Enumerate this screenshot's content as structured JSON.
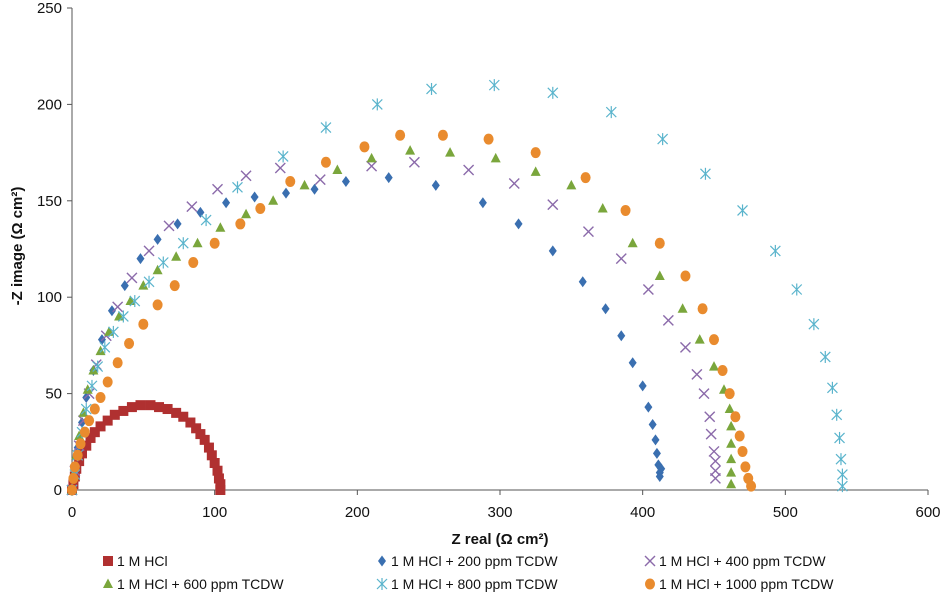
{
  "chart_data": {
    "type": "scatter",
    "xlabel": "Z real (Ω cm²)",
    "ylabel": "-Z image (Ω cm²)",
    "xlim": [
      0,
      600
    ],
    "ylim": [
      0,
      250
    ],
    "xticks": [
      0,
      100,
      200,
      300,
      400,
      500,
      600
    ],
    "yticks": [
      0,
      50,
      100,
      150,
      200,
      250
    ],
    "grid": false,
    "legend_position": "bottom",
    "series": [
      {
        "name": "1 M HCl",
        "marker": "square",
        "color": "#b03030",
        "points": [
          [
            0,
            0
          ],
          [
            1,
            3
          ],
          [
            2,
            7
          ],
          [
            3,
            11
          ],
          [
            5,
            15
          ],
          [
            7,
            19
          ],
          [
            10,
            23
          ],
          [
            13,
            27
          ],
          [
            16,
            30
          ],
          [
            20,
            33
          ],
          [
            25,
            36
          ],
          [
            30,
            39
          ],
          [
            36,
            41
          ],
          [
            42,
            43
          ],
          [
            48,
            44
          ],
          [
            55,
            44
          ],
          [
            61,
            43
          ],
          [
            67,
            42
          ],
          [
            73,
            40
          ],
          [
            78,
            38
          ],
          [
            83,
            35
          ],
          [
            87,
            32
          ],
          [
            90,
            29
          ],
          [
            93,
            26
          ],
          [
            96,
            22
          ],
          [
            98,
            18
          ],
          [
            100,
            14
          ],
          [
            102,
            10
          ],
          [
            103,
            6
          ],
          [
            104,
            3
          ],
          [
            104,
            0
          ]
        ]
      },
      {
        "name": "1 M HCl + 200 ppm TCDW",
        "marker": "diamond",
        "color": "#3a6fb0",
        "points": [
          [
            0,
            0
          ],
          [
            2,
            10
          ],
          [
            4,
            22
          ],
          [
            7,
            35
          ],
          [
            10,
            48
          ],
          [
            15,
            62
          ],
          [
            21,
            78
          ],
          [
            28,
            93
          ],
          [
            37,
            106
          ],
          [
            48,
            120
          ],
          [
            60,
            130
          ],
          [
            74,
            138
          ],
          [
            90,
            144
          ],
          [
            108,
            149
          ],
          [
            128,
            152
          ],
          [
            150,
            154
          ],
          [
            170,
            156
          ],
          [
            192,
            160
          ],
          [
            222,
            162
          ],
          [
            255,
            158
          ],
          [
            288,
            149
          ],
          [
            313,
            138
          ],
          [
            337,
            124
          ],
          [
            358,
            108
          ],
          [
            374,
            94
          ],
          [
            385,
            80
          ],
          [
            393,
            66
          ],
          [
            400,
            54
          ],
          [
            404,
            43
          ],
          [
            407,
            34
          ],
          [
            409,
            26
          ],
          [
            410,
            19
          ],
          [
            411,
            13
          ],
          [
            412,
            9
          ],
          [
            413,
            11
          ],
          [
            412,
            7
          ]
        ]
      },
      {
        "name": "1 M HCl + 400 ppm TCDW",
        "marker": "x",
        "color": "#8b6aaa",
        "points": [
          [
            0,
            0
          ],
          [
            2,
            10
          ],
          [
            5,
            23
          ],
          [
            8,
            36
          ],
          [
            12,
            50
          ],
          [
            17,
            65
          ],
          [
            24,
            80
          ],
          [
            32,
            95
          ],
          [
            42,
            110
          ],
          [
            54,
            124
          ],
          [
            68,
            137
          ],
          [
            84,
            147
          ],
          [
            102,
            156
          ],
          [
            122,
            163
          ],
          [
            146,
            167
          ],
          [
            174,
            161
          ],
          [
            210,
            168
          ],
          [
            240,
            170
          ],
          [
            278,
            166
          ],
          [
            310,
            159
          ],
          [
            337,
            148
          ],
          [
            362,
            134
          ],
          [
            385,
            120
          ],
          [
            404,
            104
          ],
          [
            418,
            88
          ],
          [
            430,
            74
          ],
          [
            438,
            60
          ],
          [
            443,
            50
          ],
          [
            447,
            38
          ],
          [
            448,
            29
          ],
          [
            450,
            20
          ],
          [
            451,
            15
          ],
          [
            451,
            10
          ],
          [
            451,
            6
          ]
        ]
      },
      {
        "name": "1 M HCl + 600 ppm TCDW",
        "marker": "triangle",
        "color": "#7aa63c",
        "points": [
          [
            0,
            0
          ],
          [
            1,
            8
          ],
          [
            3,
            18
          ],
          [
            5,
            28
          ],
          [
            8,
            40
          ],
          [
            11,
            52
          ],
          [
            15,
            62
          ],
          [
            20,
            72
          ],
          [
            26,
            82
          ],
          [
            33,
            90
          ],
          [
            41,
            98
          ],
          [
            50,
            106
          ],
          [
            60,
            114
          ],
          [
            73,
            121
          ],
          [
            88,
            128
          ],
          [
            104,
            136
          ],
          [
            122,
            143
          ],
          [
            141,
            150
          ],
          [
            163,
            158
          ],
          [
            186,
            166
          ],
          [
            210,
            172
          ],
          [
            237,
            176
          ],
          [
            265,
            175
          ],
          [
            297,
            172
          ],
          [
            325,
            165
          ],
          [
            350,
            158
          ],
          [
            372,
            146
          ],
          [
            393,
            128
          ],
          [
            412,
            111
          ],
          [
            428,
            94
          ],
          [
            440,
            78
          ],
          [
            450,
            64
          ],
          [
            457,
            52
          ],
          [
            461,
            42
          ],
          [
            462,
            33
          ],
          [
            462,
            24
          ],
          [
            462,
            16
          ],
          [
            462,
            9
          ],
          [
            462,
            3
          ]
        ]
      },
      {
        "name": "1 M HCl + 800 ppm TCDW",
        "marker": "asterisk",
        "color": "#5ab4cc",
        "points": [
          [
            0,
            0
          ],
          [
            2,
            8
          ],
          [
            4,
            18
          ],
          [
            7,
            30
          ],
          [
            10,
            42
          ],
          [
            14,
            54
          ],
          [
            18,
            64
          ],
          [
            23,
            74
          ],
          [
            29,
            82
          ],
          [
            36,
            90
          ],
          [
            44,
            98
          ],
          [
            54,
            108
          ],
          [
            64,
            118
          ],
          [
            78,
            128
          ],
          [
            94,
            140
          ],
          [
            116,
            157
          ],
          [
            148,
            173
          ],
          [
            178,
            188
          ],
          [
            214,
            200
          ],
          [
            252,
            208
          ],
          [
            296,
            210
          ],
          [
            337,
            206
          ],
          [
            378,
            196
          ],
          [
            414,
            182
          ],
          [
            444,
            164
          ],
          [
            470,
            145
          ],
          [
            493,
            124
          ],
          [
            508,
            104
          ],
          [
            520,
            86
          ],
          [
            528,
            69
          ],
          [
            533,
            53
          ],
          [
            536,
            39
          ],
          [
            538,
            27
          ],
          [
            539,
            16
          ],
          [
            540,
            8
          ],
          [
            540,
            2
          ]
        ]
      },
      {
        "name": "1 M HCl + 1000 ppm TCDW",
        "marker": "circle",
        "color": "#e98b2e",
        "points": [
          [
            0,
            0
          ],
          [
            1,
            6
          ],
          [
            2,
            12
          ],
          [
            4,
            18
          ],
          [
            6,
            24
          ],
          [
            9,
            30
          ],
          [
            12,
            36
          ],
          [
            16,
            42
          ],
          [
            20,
            48
          ],
          [
            25,
            56
          ],
          [
            32,
            66
          ],
          [
            40,
            76
          ],
          [
            50,
            86
          ],
          [
            60,
            96
          ],
          [
            72,
            106
          ],
          [
            85,
            118
          ],
          [
            100,
            128
          ],
          [
            118,
            138
          ],
          [
            132,
            146
          ],
          [
            153,
            160
          ],
          [
            178,
            170
          ],
          [
            205,
            178
          ],
          [
            230,
            184
          ],
          [
            260,
            184
          ],
          [
            292,
            182
          ],
          [
            325,
            175
          ],
          [
            360,
            162
          ],
          [
            388,
            145
          ],
          [
            412,
            128
          ],
          [
            430,
            111
          ],
          [
            442,
            94
          ],
          [
            450,
            78
          ],
          [
            456,
            62
          ],
          [
            461,
            50
          ],
          [
            465,
            38
          ],
          [
            468,
            28
          ],
          [
            470,
            20
          ],
          [
            472,
            12
          ],
          [
            474,
            6
          ],
          [
            476,
            2
          ]
        ]
      }
    ]
  }
}
